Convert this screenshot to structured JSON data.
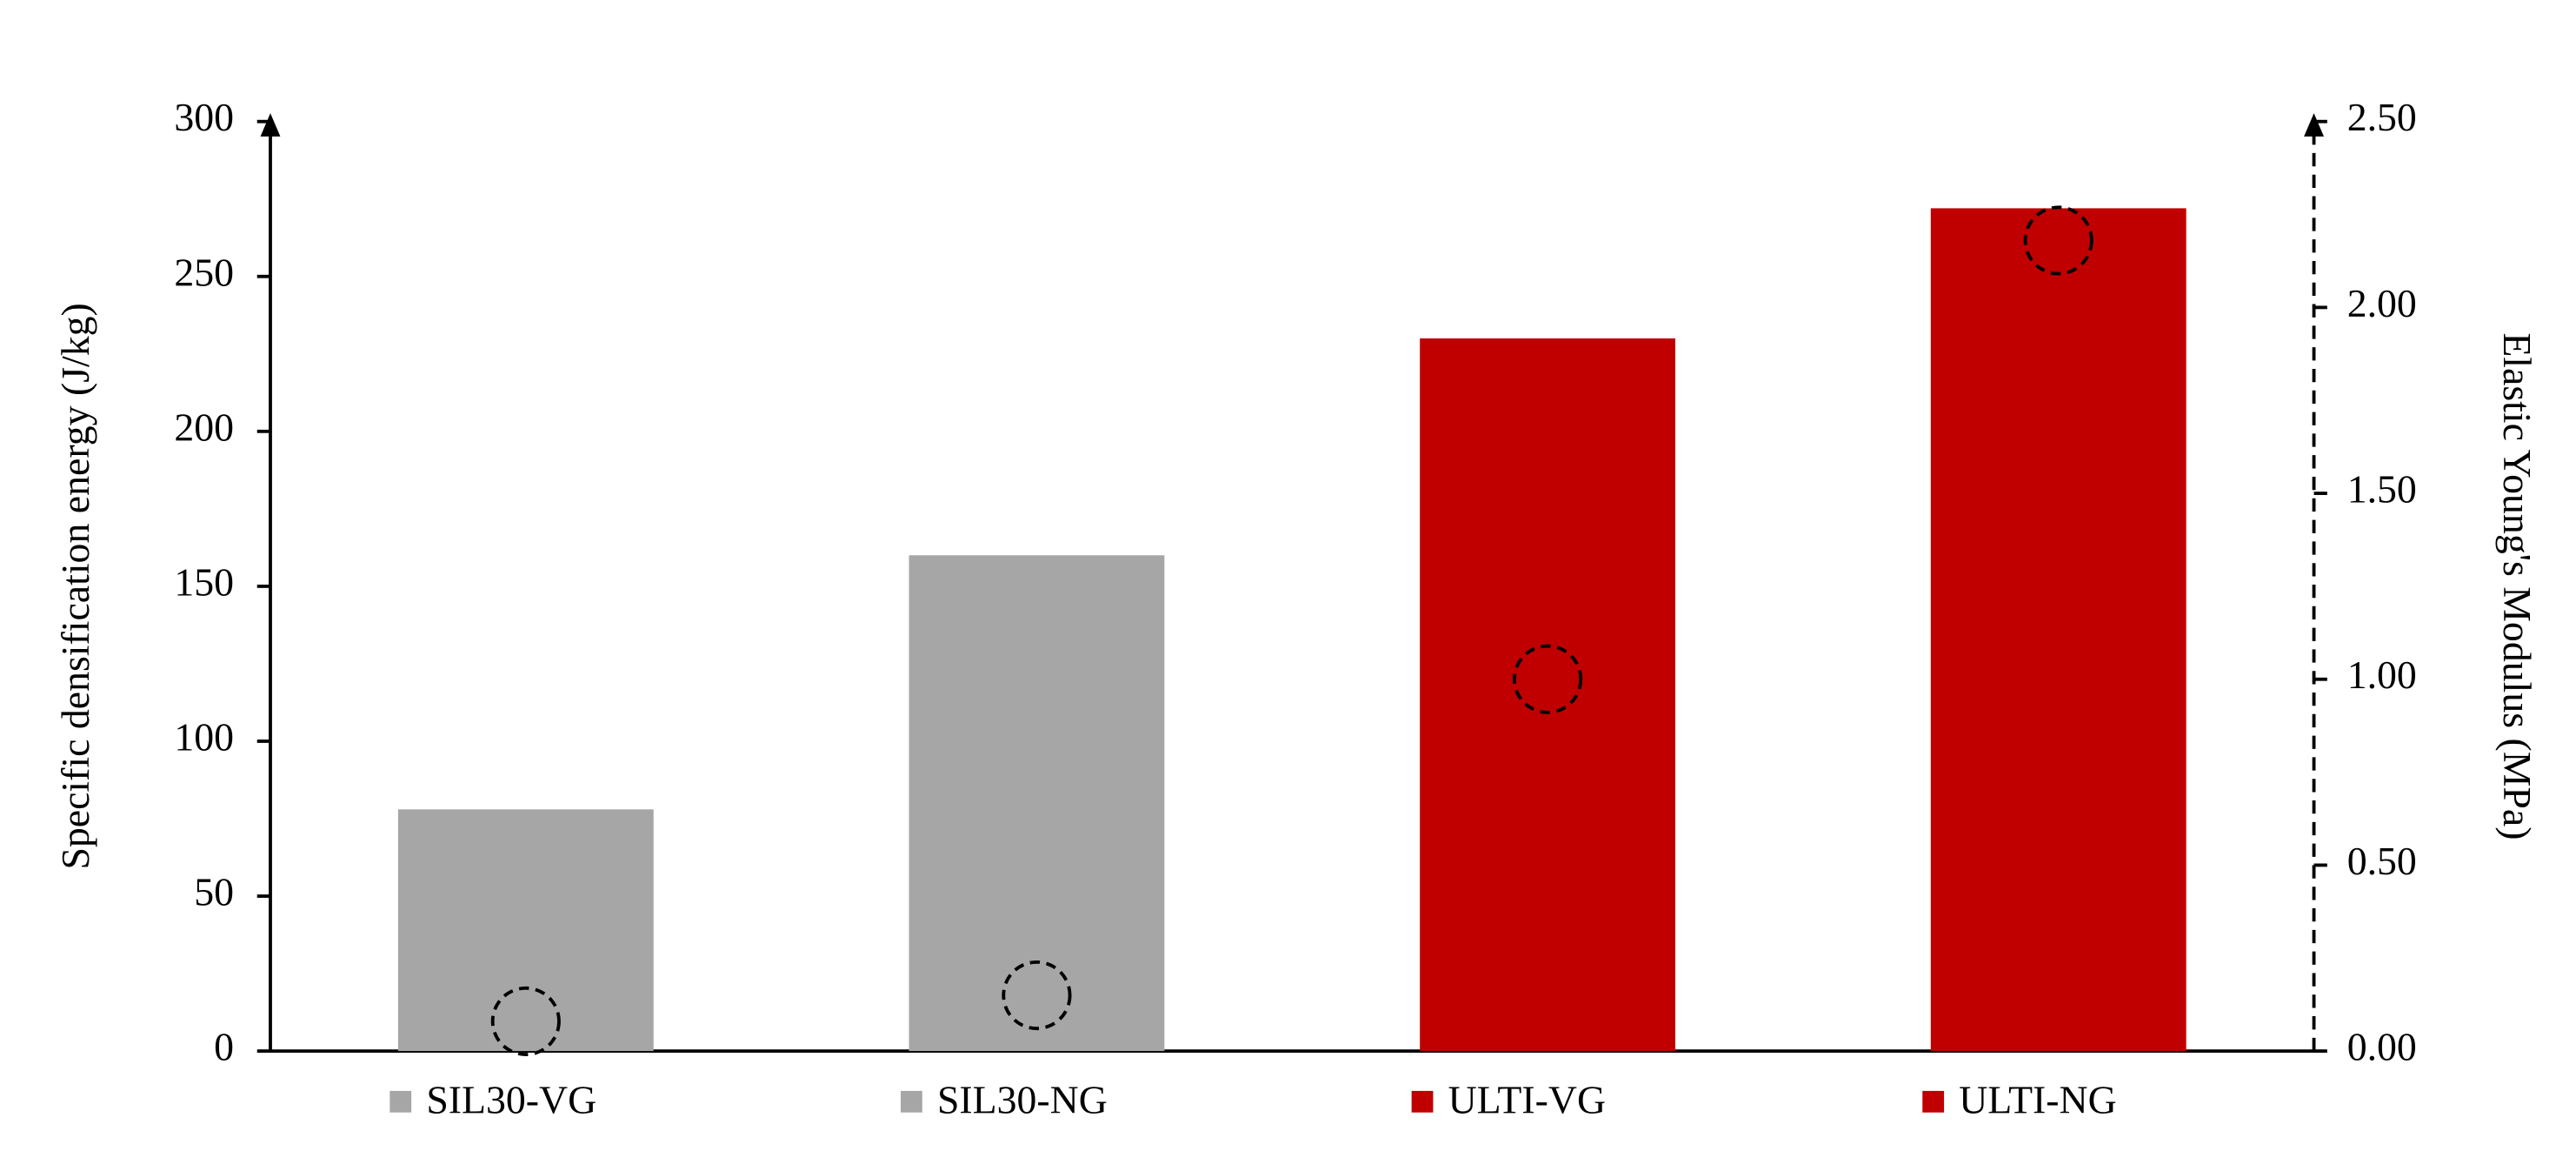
{
  "chart_data": {
    "type": "bar",
    "y_label": "Specific densification energy (J/kg)",
    "y2_label": "Elastic Young's Modulus (MPa)",
    "categories": [
      "SIL30-VG",
      "SIL30-NG",
      "ULTI-VG",
      "ULTI-NG"
    ],
    "series": [
      {
        "type": "bar",
        "colors": [
          "#a6a6a6",
          "#a6a6a6",
          "#c00000",
          "#c00000"
        ],
        "values": [
          78,
          160,
          230,
          272
        ]
      },
      {
        "type": "scatter",
        "axis": "y2",
        "color": "#000000",
        "values": [
          0.08,
          0.15,
          1.0,
          2.18
        ]
      }
    ],
    "ylim": [
      0,
      300
    ],
    "yticks": [
      0,
      50,
      100,
      150,
      200,
      250,
      300
    ],
    "y2lim": [
      0,
      2.5
    ],
    "y2ticks": [
      {
        "value": 0,
        "label": "0.00"
      },
      {
        "value": 0.5,
        "label": "0.50"
      },
      {
        "value": 1,
        "label": "1.00"
      },
      {
        "value": 1.5,
        "label": "1.50"
      },
      {
        "value": 2,
        "label": "2.00"
      },
      {
        "value": 2.5,
        "label": "2.50"
      }
    ]
  }
}
